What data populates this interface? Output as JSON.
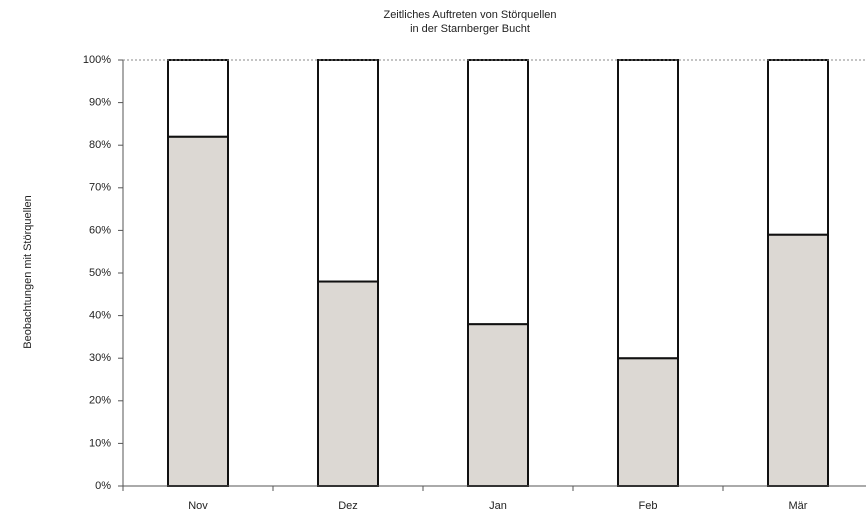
{
  "chart_data": {
    "type": "stacked_bar",
    "title": "Zeitliches Auftreten von Störquellen",
    "subtitle": "in der Starnberger Bucht",
    "y_label": "Beobachtungen mit Störquellen",
    "categories": [
      "Nov",
      "Dez",
      "Jan",
      "Feb",
      "Mär"
    ],
    "series": [
      {
        "color": "#dcd8d3",
        "values": [
          82,
          48,
          38,
          30,
          59
        ]
      },
      {
        "color": "#ffffff",
        "values": [
          18,
          52,
          62,
          70,
          41
        ]
      }
    ],
    "ylim": [
      0,
      100
    ],
    "yticks": [
      {
        "value": 0,
        "label": "0%"
      },
      {
        "value": 10,
        "label": "10%"
      },
      {
        "value": 20,
        "label": "20%"
      },
      {
        "value": 30,
        "label": "30%"
      },
      {
        "value": 40,
        "label": "40%"
      },
      {
        "value": 50,
        "label": "50%"
      },
      {
        "value": 60,
        "label": "60%"
      },
      {
        "value": 70,
        "label": "70%"
      },
      {
        "value": 80,
        "label": "80%"
      },
      {
        "value": 90,
        "label": "90%"
      },
      {
        "value": 100,
        "label": "100%"
      }
    ],
    "grid": false
  }
}
